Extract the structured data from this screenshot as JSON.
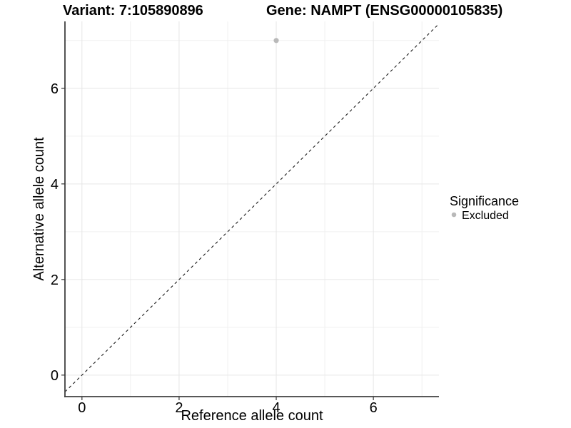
{
  "chart_data": {
    "type": "scatter",
    "titles": {
      "left": "Variant: 7:105890896",
      "right": "Gene: NAMPT (ENSG00000105835)"
    },
    "xlabel": "Reference allele count",
    "ylabel": "Alternative allele count",
    "xlim": [
      -0.35,
      7.35
    ],
    "ylim": [
      -0.45,
      7.4
    ],
    "x_ticks": [
      0,
      2,
      4,
      6
    ],
    "y_ticks": [
      0,
      2,
      4,
      6
    ],
    "x_minor_gridlines": [
      1,
      3,
      5,
      7
    ],
    "y_minor_gridlines": [
      1,
      3,
      5,
      7
    ],
    "grid": true,
    "points": [
      {
        "x": 4,
        "y": 7,
        "significance": "Excluded"
      }
    ],
    "reference_line": {
      "slope": 1,
      "intercept": 0,
      "linetype": "dashed"
    },
    "legend": {
      "title": "Significance",
      "position": "right",
      "items": [
        {
          "label": "Excluded",
          "color": "#b9b9b9"
        }
      ]
    },
    "colors": {
      "point": "#b9b9b9",
      "grid_major": "#e6e6e6",
      "grid_minor": "#f0f0f0",
      "axis_line": "#404040",
      "tick": "#333333",
      "reference_line": "#1a1a1a",
      "text": "#000000",
      "background": "#ffffff"
    }
  }
}
